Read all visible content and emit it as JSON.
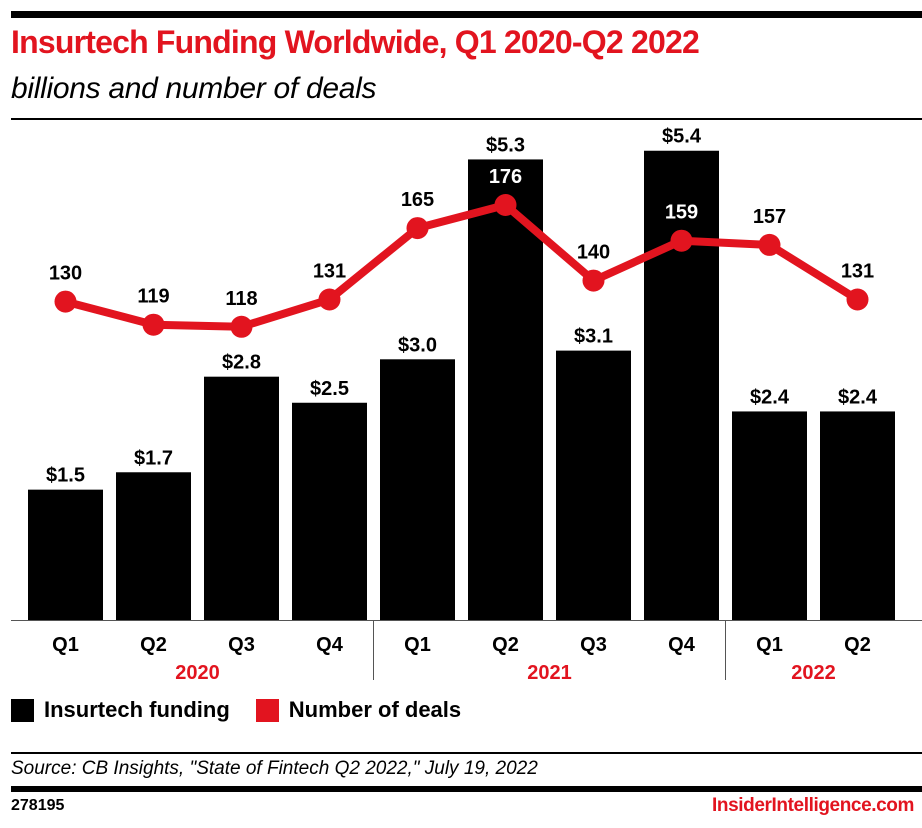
{
  "header": {
    "title": "Insurtech Funding Worldwide, Q1 2020-Q2 2022",
    "subtitle": "billions and number of deals"
  },
  "colors": {
    "accent": "#e2141f",
    "bar": "#000000",
    "line": "#e2141f"
  },
  "chart_data": {
    "type": "bar",
    "title": "Insurtech Funding Worldwide, Q1 2020-Q2 2022",
    "subtitle": "billions and number of deals",
    "categories": [
      "Q1",
      "Q2",
      "Q3",
      "Q4",
      "Q1",
      "Q2",
      "Q3",
      "Q4",
      "Q1",
      "Q2"
    ],
    "groups": [
      {
        "label": "2020",
        "start": 0,
        "count": 4
      },
      {
        "label": "2021",
        "start": 4,
        "count": 4
      },
      {
        "label": "2022",
        "start": 8,
        "count": 2
      }
    ],
    "series": [
      {
        "name": "Insurtech funding",
        "type": "bar",
        "unit": "billions",
        "values": [
          1.5,
          1.7,
          2.8,
          2.5,
          3.0,
          5.3,
          3.1,
          5.4,
          2.4,
          2.4
        ],
        "labels": [
          "$1.5",
          "$1.7",
          "$2.8",
          "$2.5",
          "$3.0",
          "$5.3",
          "$3.1",
          "$5.4",
          "$2.4",
          "$2.4"
        ]
      },
      {
        "name": "Number of deals",
        "type": "line",
        "values": [
          130,
          119,
          118,
          131,
          165,
          176,
          140,
          159,
          157,
          131
        ],
        "labels": [
          "130",
          "119",
          "118",
          "131",
          "165",
          "176",
          "140",
          "159",
          "157",
          "131"
        ]
      }
    ],
    "xlabel": "",
    "ylabel": "",
    "ylim_bar": [
      0,
      5.4
    ],
    "grid": false,
    "legend": "bottom-left"
  },
  "legend": {
    "items": [
      {
        "label": "Insurtech funding",
        "color": "#000000"
      },
      {
        "label": "Number of deals",
        "color": "#e2141f"
      }
    ]
  },
  "footer": {
    "source": "Source: CB Insights, \"State of Fintech Q2 2022,\" July 19, 2022",
    "chart_id": "278195",
    "brand": "InsiderIntelligence.com"
  }
}
